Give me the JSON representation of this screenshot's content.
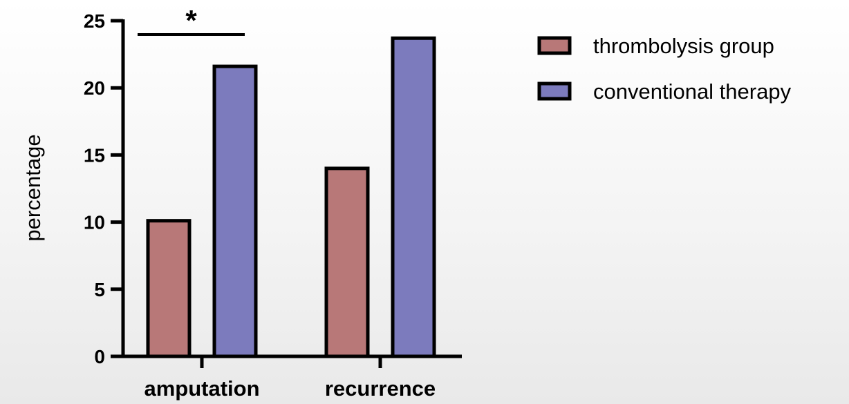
{
  "chart_data": {
    "type": "bar",
    "title": "",
    "xlabel": "",
    "ylabel": "percentage",
    "ylim": [
      0,
      25
    ],
    "yticks": [
      0,
      5,
      10,
      15,
      20,
      25
    ],
    "yticks_labels": [
      "0",
      "5",
      "10",
      "15",
      "20",
      "25"
    ],
    "categories": [
      "amputation",
      "recurrence"
    ],
    "series": [
      {
        "name": "thrombolysis group",
        "values": [
          10.1,
          14.0
        ],
        "color": "#b87878"
      },
      {
        "name": "conventional therapy",
        "values": [
          21.6,
          23.7
        ],
        "color": "#7c7bbd"
      }
    ],
    "legend_position": "top-right",
    "grid": false,
    "annotations": [
      {
        "text": "*",
        "type": "significance",
        "category": "amputation"
      }
    ]
  }
}
